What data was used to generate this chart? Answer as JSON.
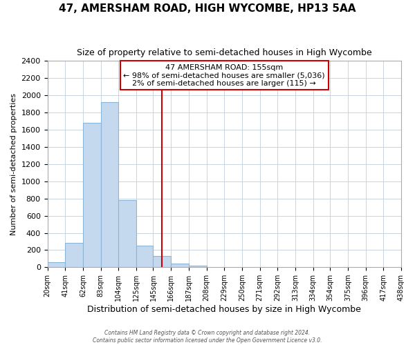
{
  "title": "47, AMERSHAM ROAD, HIGH WYCOMBE, HP13 5AA",
  "subtitle": "Size of property relative to semi-detached houses in High Wycombe",
  "xlabel": "Distribution of semi-detached houses by size in High Wycombe",
  "ylabel": "Number of semi-detached properties",
  "bin_edges": [
    20,
    41,
    62,
    83,
    104,
    125,
    145,
    166,
    187,
    208,
    229,
    250,
    271,
    292,
    313,
    334,
    354,
    375,
    396,
    417,
    438
  ],
  "bin_counts": [
    55,
    280,
    1680,
    1920,
    780,
    255,
    130,
    45,
    20,
    0,
    0,
    0,
    0,
    0,
    0,
    0,
    0,
    0,
    0,
    0
  ],
  "bar_color": "#c5d9ee",
  "bar_edgecolor": "#8ab4d8",
  "vline_x": 155,
  "vline_color": "#cc0000",
  "annotation_title": "47 AMERSHAM ROAD: 155sqm",
  "annotation_line1": "← 98% of semi-detached houses are smaller (5,036)",
  "annotation_line2": "2% of semi-detached houses are larger (115) →",
  "annotation_box_edgecolor": "#cc0000",
  "ylim": [
    0,
    2400
  ],
  "yticks": [
    0,
    200,
    400,
    600,
    800,
    1000,
    1200,
    1400,
    1600,
    1800,
    2000,
    2200,
    2400
  ],
  "tick_labels": [
    "20sqm",
    "41sqm",
    "62sqm",
    "83sqm",
    "104sqm",
    "125sqm",
    "145sqm",
    "166sqm",
    "187sqm",
    "208sqm",
    "229sqm",
    "250sqm",
    "271sqm",
    "292sqm",
    "313sqm",
    "334sqm",
    "354sqm",
    "375sqm",
    "396sqm",
    "417sqm",
    "438sqm"
  ],
  "footer_line1": "Contains HM Land Registry data © Crown copyright and database right 2024.",
  "footer_line2": "Contains public sector information licensed under the Open Government Licence v3.0.",
  "background_color": "#ffffff",
  "grid_color": "#c8d4e0"
}
